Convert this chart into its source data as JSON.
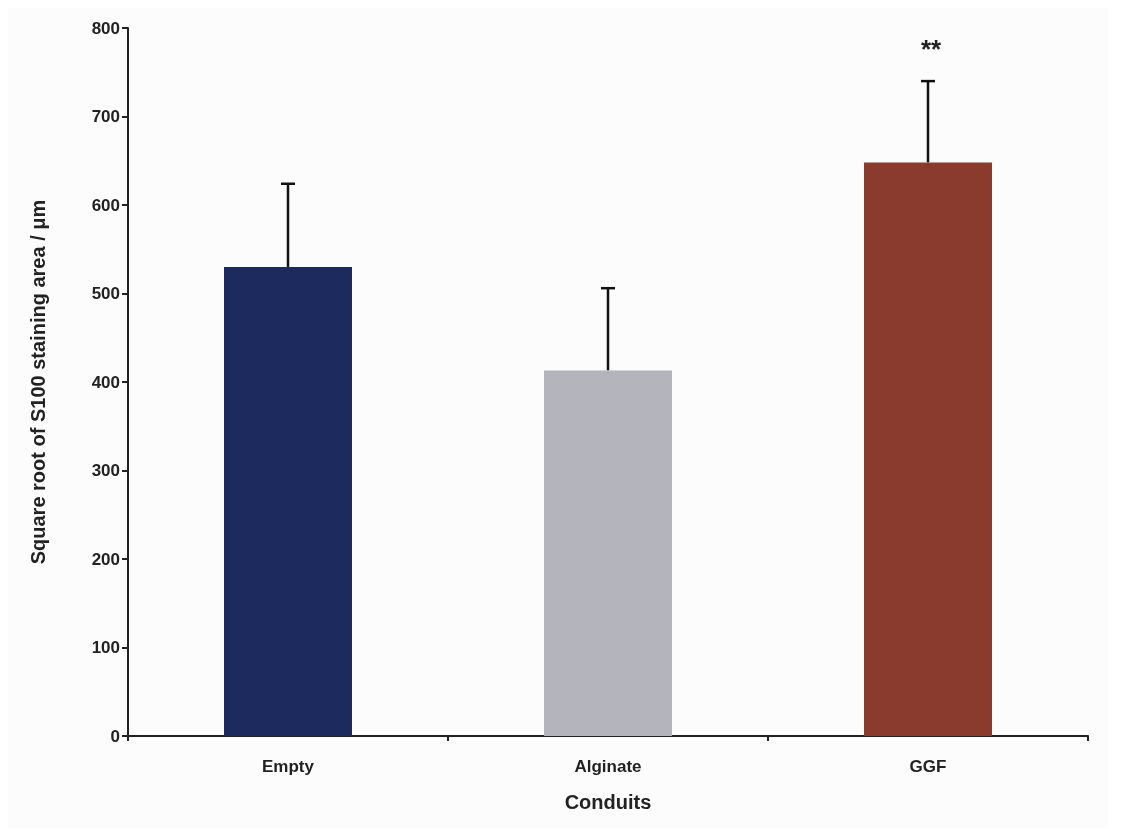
{
  "chart_data": {
    "type": "bar",
    "xlabel": "Conduits",
    "ylabel": "Square root of S100 staining area / μm",
    "categories": [
      "Empty",
      "Alginate",
      "GGF"
    ],
    "values": [
      530,
      413,
      648
    ],
    "colors": [
      "#1c2a5e",
      "#b4b4bc",
      "#8b3a2e"
    ],
    "errors": [
      [
        530,
        624
      ],
      [
        413,
        506
      ],
      [
        648,
        740
      ]
    ],
    "ylim": [
      0,
      800
    ],
    "yticks": [
      0,
      100,
      200,
      300,
      400,
      500,
      600,
      700,
      800
    ],
    "annotations": [
      "**"
    ],
    "grid": false
  }
}
